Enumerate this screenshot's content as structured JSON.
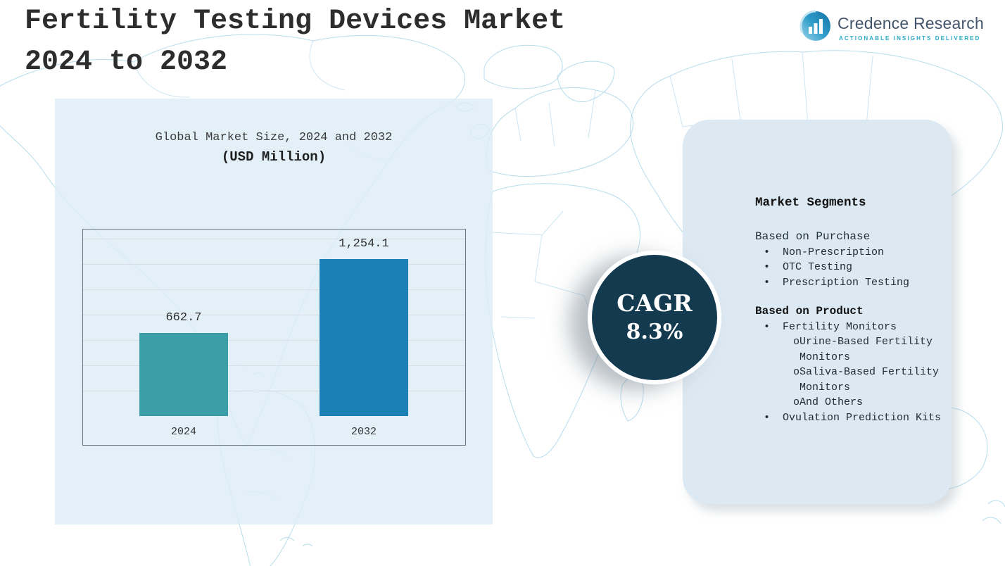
{
  "page": {
    "title_line1": "Fertility Testing Devices Market",
    "title_line2": "2024 to 2032"
  },
  "logo": {
    "name": "Credence Research",
    "tagline": "ACTIONABLE INSIGHTS DELIVERED"
  },
  "chart_data": {
    "type": "bar",
    "title": "Global Market Size, 2024 and 2032",
    "subtitle": "(USD Million)",
    "categories": [
      "2024",
      "2032"
    ],
    "values": [
      662.7,
      1254.1
    ],
    "value_labels": [
      "662.7",
      "1,254.1"
    ],
    "unit": "USD Million",
    "ylim": [
      0,
      1500
    ],
    "grid": true,
    "legend": false,
    "bar_colors": [
      "#3a9fa6",
      "#1a80b6"
    ]
  },
  "cagr": {
    "label": "CAGR",
    "value": "8.3%"
  },
  "segments": {
    "title": "Market Segments",
    "bullet": "•",
    "sub_bullet": "o",
    "groups": [
      {
        "heading": "Based on Purchase",
        "items": [
          "Non-Prescription",
          "OTC Testing",
          "Prescription Testing"
        ]
      },
      {
        "heading": "Based on Product",
        "items": [
          "Fertility Monitors",
          "Ovulation Prediction Kits"
        ],
        "sub_items_of_first": [
          "Urine-Based Fertility Monitors",
          "Saliva-Based Fertility Monitors",
          "And Others"
        ]
      }
    ]
  }
}
